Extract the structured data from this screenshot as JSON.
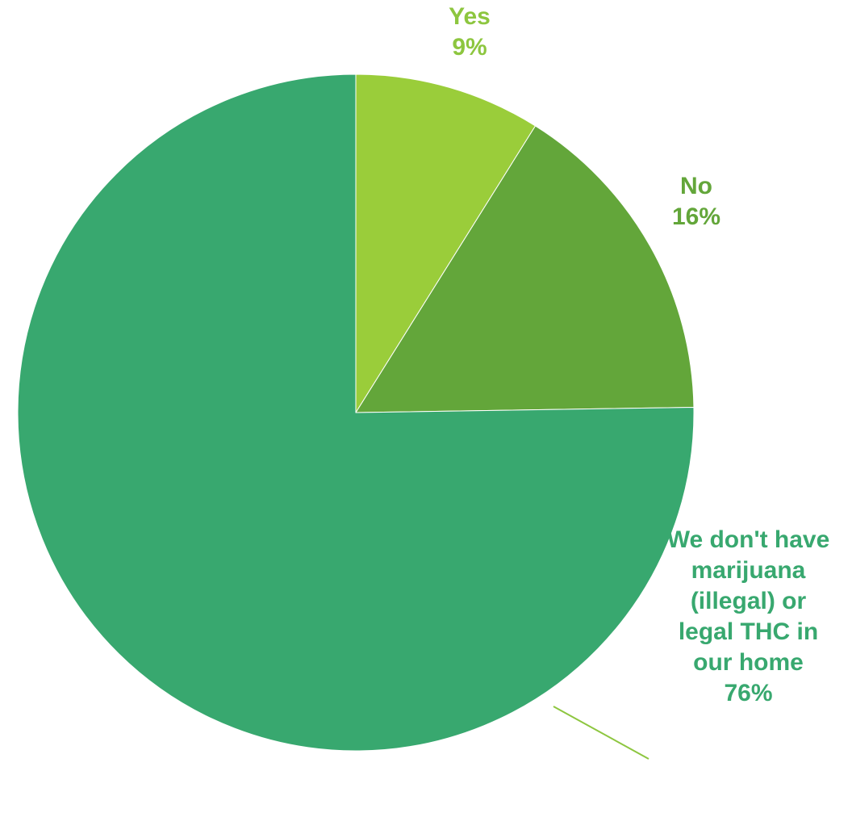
{
  "chart_data": {
    "type": "pie",
    "title": "",
    "categories": [
      "Yes",
      "No",
      "We don't have marijuana (illegal) or legal THC in our home"
    ],
    "values": [
      9,
      16,
      76
    ],
    "labels": [
      {
        "category": "Yes",
        "percent": "9%"
      },
      {
        "category": "No",
        "percent": "16%"
      },
      {
        "category": "We don't have marijuana (illegal) or legal THC in our home",
        "percent": "76%"
      }
    ],
    "colors": [
      "#9ACD3A",
      "#63A63A",
      "#38A86F"
    ],
    "label_colors": [
      "#8DC63F",
      "#63A63A",
      "#38A86F"
    ],
    "start_angle": "12 o'clock",
    "direction": "clockwise",
    "legend": "none"
  }
}
